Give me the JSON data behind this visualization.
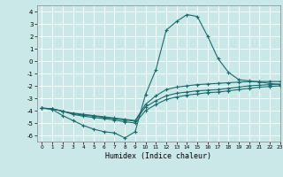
{
  "title": "",
  "xlabel": "Humidex (Indice chaleur)",
  "background_color": "#cbe8e8",
  "grid_color": "#ffffff",
  "line_color": "#1a6b6b",
  "xlim": [
    -0.5,
    23
  ],
  "ylim": [
    -6.5,
    4.5
  ],
  "yticks": [
    -6,
    -5,
    -4,
    -3,
    -2,
    -1,
    0,
    1,
    2,
    3,
    4
  ],
  "xticks": [
    0,
    1,
    2,
    3,
    4,
    5,
    6,
    7,
    8,
    9,
    10,
    11,
    12,
    13,
    14,
    15,
    16,
    17,
    18,
    19,
    20,
    21,
    22,
    23
  ],
  "line1_x": [
    0,
    1,
    2,
    3,
    4,
    5,
    6,
    7,
    8,
    9,
    10,
    11,
    12,
    13,
    14,
    15,
    16,
    17,
    18,
    19,
    20,
    21,
    22,
    23
  ],
  "line1_y": [
    -3.8,
    -3.9,
    -4.4,
    -4.8,
    -5.2,
    -5.5,
    -5.7,
    -5.8,
    -6.2,
    -5.7,
    -2.7,
    -0.7,
    2.5,
    3.2,
    3.75,
    3.6,
    2.0,
    0.2,
    -0.9,
    -1.5,
    -1.6,
    -1.7,
    -1.8,
    -1.9
  ],
  "line2_x": [
    0,
    1,
    2,
    3,
    4,
    5,
    6,
    7,
    8,
    9,
    10,
    11,
    12,
    13,
    14,
    15,
    16,
    17,
    18,
    19,
    20,
    21,
    22,
    23
  ],
  "line2_y": [
    -3.8,
    -3.85,
    -4.05,
    -4.3,
    -4.45,
    -4.55,
    -4.65,
    -4.75,
    -4.9,
    -5.0,
    -4.0,
    -3.5,
    -3.1,
    -2.9,
    -2.75,
    -2.65,
    -2.55,
    -2.5,
    -2.4,
    -2.3,
    -2.2,
    -2.1,
    -2.05,
    -2.0
  ],
  "line3_x": [
    0,
    1,
    2,
    3,
    4,
    5,
    6,
    7,
    8,
    9,
    10,
    11,
    12,
    13,
    14,
    15,
    16,
    17,
    18,
    19,
    20,
    21,
    22,
    23
  ],
  "line3_y": [
    -3.8,
    -3.85,
    -4.05,
    -4.25,
    -4.35,
    -4.45,
    -4.55,
    -4.65,
    -4.75,
    -4.85,
    -3.7,
    -3.2,
    -2.8,
    -2.6,
    -2.5,
    -2.4,
    -2.35,
    -2.3,
    -2.2,
    -2.1,
    -2.0,
    -1.95,
    -1.9,
    -1.85
  ],
  "line4_x": [
    0,
    1,
    2,
    3,
    4,
    5,
    6,
    7,
    8,
    9,
    10,
    11,
    12,
    13,
    14,
    15,
    16,
    17,
    18,
    19,
    20,
    21,
    22,
    23
  ],
  "line4_y": [
    -3.8,
    -3.85,
    -4.05,
    -4.2,
    -4.3,
    -4.4,
    -4.5,
    -4.6,
    -4.7,
    -4.8,
    -3.5,
    -2.8,
    -2.3,
    -2.1,
    -2.0,
    -1.9,
    -1.85,
    -1.8,
    -1.75,
    -1.7,
    -1.65,
    -1.65,
    -1.65,
    -1.65
  ]
}
